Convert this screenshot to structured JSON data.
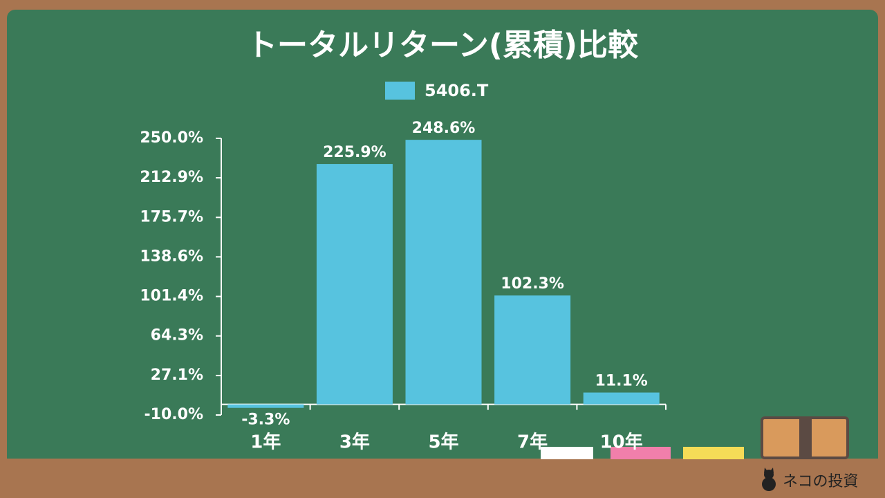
{
  "chart_data": {
    "type": "bar",
    "title": "トータルリターン(累積)比較",
    "categories": [
      "1年",
      "3年",
      "5年",
      "7年",
      "10年"
    ],
    "series": [
      {
        "name": "5406.T",
        "color": "#57c3df",
        "values": [
          -3.3,
          225.9,
          248.6,
          102.3,
          11.1
        ],
        "value_labels": [
          "-3.3%",
          "225.9%",
          "248.6%",
          "102.3%",
          "11.1%"
        ]
      }
    ],
    "ylim": [
      -10,
      250
    ],
    "yticks": [
      {
        "value": -10,
        "label": "-10.0%"
      },
      {
        "value": 27.1,
        "label": "27.1%"
      },
      {
        "value": 64.3,
        "label": "64.3%"
      },
      {
        "value": 101.4,
        "label": "101.4%"
      },
      {
        "value": 138.6,
        "label": "138.6%"
      },
      {
        "value": 175.7,
        "label": "175.7%"
      },
      {
        "value": 212.9,
        "label": "212.9%"
      },
      {
        "value": 250,
        "label": "250.0%"
      }
    ],
    "legend": "top"
  },
  "watermark": "ネコの投資"
}
